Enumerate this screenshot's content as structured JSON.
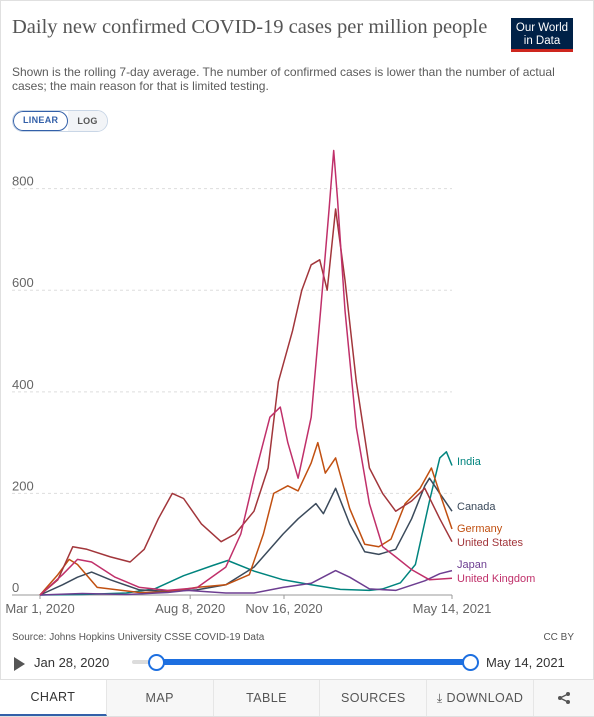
{
  "header": {
    "title": "Daily new confirmed COVID-19 cases per million people",
    "subtitle": "Shown is the rolling 7-day average. The number of confirmed cases is lower than the number of actual cases; the main reason for that is limited testing.",
    "logo_line1": "Our World",
    "logo_line2": "in Data"
  },
  "scale_toggle": {
    "linear": "LINEAR",
    "log": "LOG",
    "selected": "LINEAR"
  },
  "footer": {
    "source": "Source: Johns Hopkins University CSSE COVID-19 Data",
    "license": "CC BY"
  },
  "timeline": {
    "start": "Jan 28, 2020",
    "end": "May 14, 2021"
  },
  "tabs": {
    "chart": "CHART",
    "map": "MAP",
    "table": "TABLE",
    "sources": "SOURCES",
    "download": "DOWNLOAD"
  },
  "icons": {
    "play": "play-icon",
    "download": "download-icon",
    "share": "share-icon"
  },
  "chart_data": {
    "type": "line",
    "x_ticks": [
      "Mar 1, 2020",
      "Aug 8, 2020",
      "Nov 16, 2020",
      "May 14, 2021"
    ],
    "y_ticks": [
      0,
      200,
      400,
      600,
      800
    ],
    "xlim": [
      "2020-03-01",
      "2021-05-14"
    ],
    "ylim": [
      0,
      880
    ],
    "grid": "horizontal",
    "legend": "right-end labels",
    "series": [
      {
        "name": "India",
        "color": "#00847e",
        "points": [
          [
            "2020-03-01",
            0
          ],
          [
            "2020-04-15",
            1
          ],
          [
            "2020-06-01",
            4
          ],
          [
            "2020-07-01",
            12
          ],
          [
            "2020-08-01",
            38
          ],
          [
            "2020-09-01",
            58
          ],
          [
            "2020-09-17",
            68
          ],
          [
            "2020-10-15",
            47
          ],
          [
            "2020-11-15",
            30
          ],
          [
            "2020-12-15",
            20
          ],
          [
            "2021-01-15",
            11
          ],
          [
            "2021-02-15",
            9
          ],
          [
            "2021-03-01",
            12
          ],
          [
            "2021-03-20",
            24
          ],
          [
            "2021-04-05",
            60
          ],
          [
            "2021-04-20",
            185
          ],
          [
            "2021-05-01",
            270
          ],
          [
            "2021-05-08",
            282
          ],
          [
            "2021-05-14",
            255
          ]
        ]
      },
      {
        "name": "Canada",
        "color": "#3b4a5b",
        "points": [
          [
            "2020-03-01",
            0
          ],
          [
            "2020-03-25",
            20
          ],
          [
            "2020-04-10",
            35
          ],
          [
            "2020-04-25",
            45
          ],
          [
            "2020-05-15",
            30
          ],
          [
            "2020-06-15",
            10
          ],
          [
            "2020-07-15",
            7
          ],
          [
            "2020-08-15",
            10
          ],
          [
            "2020-09-15",
            20
          ],
          [
            "2020-10-15",
            55
          ],
          [
            "2020-11-15",
            120
          ],
          [
            "2020-12-01",
            150
          ],
          [
            "2020-12-20",
            180
          ],
          [
            "2020-12-28",
            160
          ],
          [
            "2021-01-10",
            210
          ],
          [
            "2021-01-25",
            140
          ],
          [
            "2021-02-10",
            85
          ],
          [
            "2021-02-25",
            80
          ],
          [
            "2021-03-15",
            90
          ],
          [
            "2021-04-01",
            150
          ],
          [
            "2021-04-15",
            215
          ],
          [
            "2021-04-20",
            230
          ],
          [
            "2021-05-01",
            200
          ],
          [
            "2021-05-14",
            165
          ]
        ]
      },
      {
        "name": "Germany",
        "color": "#c15011",
        "points": [
          [
            "2020-03-01",
            0
          ],
          [
            "2020-03-20",
            40
          ],
          [
            "2020-04-01",
            70
          ],
          [
            "2020-04-10",
            60
          ],
          [
            "2020-05-01",
            15
          ],
          [
            "2020-06-15",
            5
          ],
          [
            "2020-07-15",
            6
          ],
          [
            "2020-08-15",
            15
          ],
          [
            "2020-09-15",
            20
          ],
          [
            "2020-10-10",
            40
          ],
          [
            "2020-10-25",
            120
          ],
          [
            "2020-11-05",
            200
          ],
          [
            "2020-11-20",
            215
          ],
          [
            "2020-12-01",
            205
          ],
          [
            "2020-12-15",
            260
          ],
          [
            "2020-12-22",
            300
          ],
          [
            "2020-12-30",
            240
          ],
          [
            "2021-01-10",
            270
          ],
          [
            "2021-01-25",
            170
          ],
          [
            "2021-02-10",
            100
          ],
          [
            "2021-02-25",
            95
          ],
          [
            "2021-03-10",
            110
          ],
          [
            "2021-03-25",
            180
          ],
          [
            "2021-04-10",
            210
          ],
          [
            "2021-04-22",
            250
          ],
          [
            "2021-05-01",
            200
          ],
          [
            "2021-05-14",
            130
          ]
        ]
      },
      {
        "name": "United States",
        "color": "#a2363b",
        "points": [
          [
            "2020-03-01",
            0
          ],
          [
            "2020-03-20",
            30
          ],
          [
            "2020-04-05",
            95
          ],
          [
            "2020-04-20",
            90
          ],
          [
            "2020-05-15",
            75
          ],
          [
            "2020-06-05",
            65
          ],
          [
            "2020-06-20",
            90
          ],
          [
            "2020-07-05",
            150
          ],
          [
            "2020-07-20",
            200
          ],
          [
            "2020-08-01",
            190
          ],
          [
            "2020-08-20",
            140
          ],
          [
            "2020-09-10",
            105
          ],
          [
            "2020-09-25",
            120
          ],
          [
            "2020-10-15",
            165
          ],
          [
            "2020-10-30",
            250
          ],
          [
            "2020-11-10",
            420
          ],
          [
            "2020-11-25",
            520
          ],
          [
            "2020-12-05",
            600
          ],
          [
            "2020-12-15",
            650
          ],
          [
            "2020-12-24",
            660
          ],
          [
            "2021-01-01",
            600
          ],
          [
            "2021-01-10",
            760
          ],
          [
            "2021-01-20",
            620
          ],
          [
            "2021-02-01",
            420
          ],
          [
            "2021-02-15",
            250
          ],
          [
            "2021-03-01",
            200
          ],
          [
            "2021-03-15",
            165
          ],
          [
            "2021-04-01",
            185
          ],
          [
            "2021-04-15",
            210
          ],
          [
            "2021-05-01",
            150
          ],
          [
            "2021-05-14",
            105
          ]
        ]
      },
      {
        "name": "Japan",
        "color": "#6d3e91",
        "points": [
          [
            "2020-03-01",
            0
          ],
          [
            "2020-04-15",
            3
          ],
          [
            "2020-06-01",
            1
          ],
          [
            "2020-07-15",
            5
          ],
          [
            "2020-08-05",
            9
          ],
          [
            "2020-09-15",
            4
          ],
          [
            "2020-10-15",
            4
          ],
          [
            "2020-11-15",
            15
          ],
          [
            "2020-12-15",
            23
          ],
          [
            "2021-01-10",
            48
          ],
          [
            "2021-01-25",
            35
          ],
          [
            "2021-02-15",
            12
          ],
          [
            "2021-03-15",
            9
          ],
          [
            "2021-04-15",
            28
          ],
          [
            "2021-05-01",
            42
          ],
          [
            "2021-05-14",
            48
          ]
        ]
      },
      {
        "name": "United Kingdom",
        "color": "#c0306a",
        "points": [
          [
            "2020-03-01",
            0
          ],
          [
            "2020-03-25",
            40
          ],
          [
            "2020-04-10",
            70
          ],
          [
            "2020-04-25",
            65
          ],
          [
            "2020-05-20",
            35
          ],
          [
            "2020-06-15",
            15
          ],
          [
            "2020-07-15",
            9
          ],
          [
            "2020-08-15",
            14
          ],
          [
            "2020-09-15",
            55
          ],
          [
            "2020-10-01",
            120
          ],
          [
            "2020-10-15",
            230
          ],
          [
            "2020-11-01",
            350
          ],
          [
            "2020-11-12",
            370
          ],
          [
            "2020-11-20",
            300
          ],
          [
            "2020-12-01",
            230
          ],
          [
            "2020-12-15",
            350
          ],
          [
            "2020-12-25",
            560
          ],
          [
            "2021-01-03",
            760
          ],
          [
            "2021-01-08",
            875
          ],
          [
            "2021-01-12",
            780
          ],
          [
            "2021-01-20",
            560
          ],
          [
            "2021-02-01",
            330
          ],
          [
            "2021-02-15",
            180
          ],
          [
            "2021-03-01",
            95
          ],
          [
            "2021-03-15",
            75
          ],
          [
            "2021-04-01",
            50
          ],
          [
            "2021-04-20",
            30
          ],
          [
            "2021-05-14",
            33
          ]
        ]
      }
    ]
  }
}
